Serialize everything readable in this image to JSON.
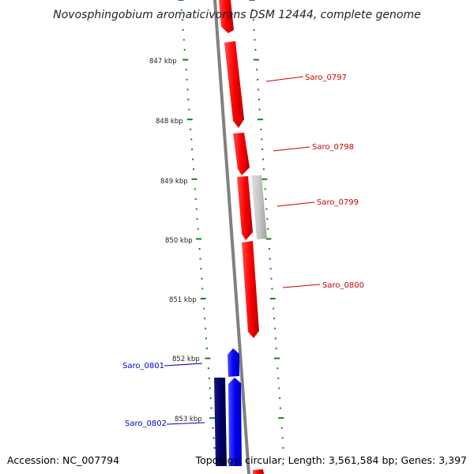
{
  "title": "Novosphingobium aromaticivorans DSM 12444, complete genome",
  "accession": "Accession: NC_007794",
  "topology": "Topology: circular; Length: 3,561,584 bp; Genes: 3,397",
  "colors": {
    "forward_gene": "#ff0000",
    "reverse_gene": "#0000ff",
    "reverse_gene_dark": "#000066",
    "other_feature": "#c8c8c8",
    "backbone": "#808080",
    "tick_dots": "#1a7f1a",
    "forward_label": "#cc0000",
    "reverse_label": "#0000cc"
  },
  "ruler": [
    {
      "label": "847 kbp"
    },
    {
      "label": "848 kbp"
    },
    {
      "label": "849 kbp"
    },
    {
      "label": "850 kbp"
    },
    {
      "label": "851 kbp"
    },
    {
      "label": "852 kbp"
    },
    {
      "label": "853 kbp"
    }
  ],
  "genes": [
    {
      "name": "Saro_0797",
      "strand": "+"
    },
    {
      "name": "Saro_0798",
      "strand": "+"
    },
    {
      "name": "Saro_0799",
      "strand": "+"
    },
    {
      "name": "Saro_0800",
      "strand": "+"
    },
    {
      "name": "Saro_0801",
      "strand": "-"
    },
    {
      "name": "Saro_0802",
      "strand": "-"
    }
  ]
}
